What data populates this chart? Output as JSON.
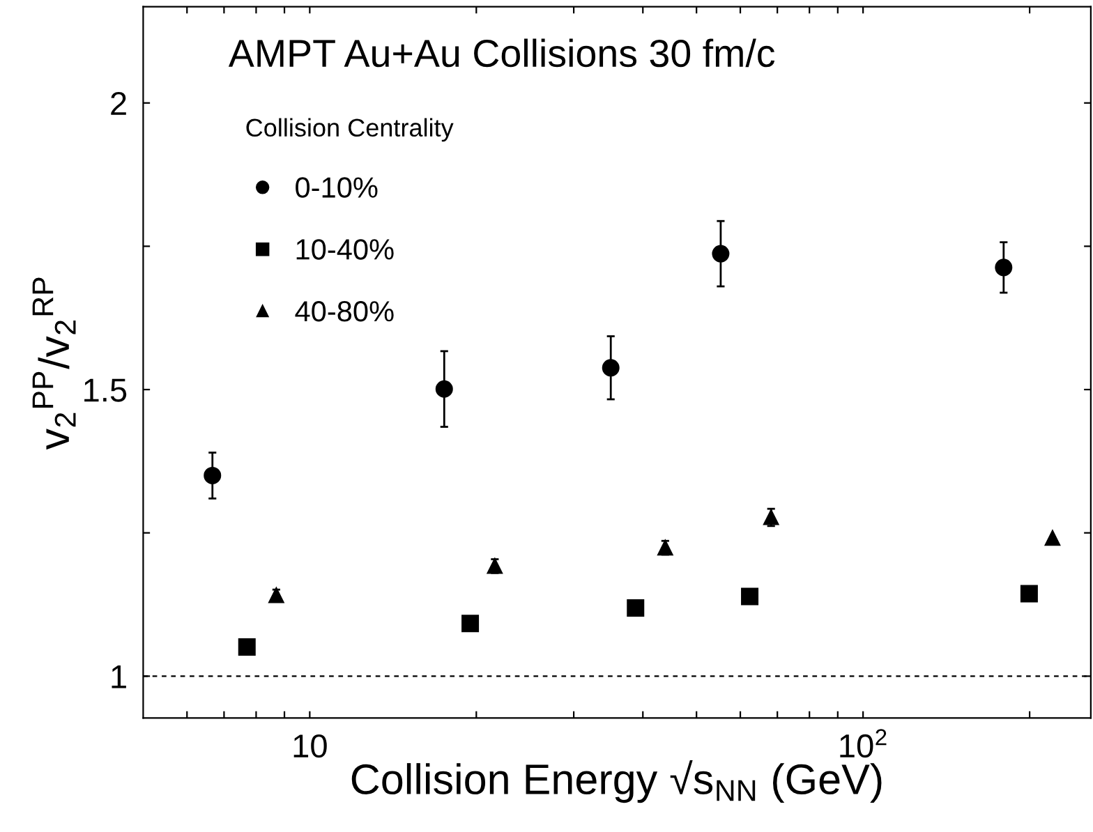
{
  "chart_data": {
    "type": "scatter",
    "title": "AMPT Au+Au Collisions 30 fm/c",
    "legend_title": "Collision Centrality",
    "xlabel": "Collision Energy √s$_{NN}$ (GeV)",
    "ylabel": "v$_{2}$$^{PP}$/v$_{2}$$^{RP}$",
    "log": "x",
    "xlim": [
      5,
      258
    ],
    "ylim": [
      0.927,
      2.168
    ],
    "xticks": [
      {
        "value": 6,
        "label": null
      },
      {
        "value": 7,
        "label": null
      },
      {
        "value": 8,
        "label": null
      },
      {
        "value": 9,
        "label": null
      },
      10,
      {
        "value": 20,
        "label": null
      },
      {
        "value": 30,
        "label": null
      },
      {
        "value": 40,
        "label": null
      },
      {
        "value": 50,
        "label": null
      },
      {
        "value": 60,
        "label": null
      },
      {
        "value": 70,
        "label": null
      },
      {
        "value": 80,
        "label": null
      },
      {
        "value": 90,
        "label": null
      },
      {
        "value": 100,
        "label": "10$^{2}$"
      },
      {
        "value": 200,
        "label": null
      }
    ],
    "yticks": [
      1,
      {
        "value": 1.25,
        "label": null
      },
      1.5,
      {
        "value": 1.75,
        "label": null
      },
      2
    ],
    "legend": "top left",
    "grid": false,
    "ref_lines": [
      {
        "axis": "y",
        "value": 1,
        "line_style": "dashed",
        "color": "#000000"
      }
    ],
    "series": [
      {
        "name": "0-10%",
        "color": "#000000",
        "marker": "circle",
        "x": [
          6.67,
          17.5,
          35.0,
          55.3,
          179.5
        ],
        "values": [
          1.35,
          1.501,
          1.538,
          1.737,
          1.713
        ],
        "errors": [
          0.04,
          0.066,
          0.055,
          0.057,
          0.044
        ]
      },
      {
        "name": "10-40%",
        "color": "#000000",
        "marker": "square",
        "x": [
          7.7,
          19.5,
          38.8,
          62.4,
          199.6
        ],
        "values": [
          1.051,
          1.092,
          1.119,
          1.139,
          1.144
        ]
      },
      {
        "name": "40-80%",
        "color": "#000000",
        "marker": "triangle",
        "x": [
          8.7,
          21.6,
          43.9,
          68.2,
          220
        ],
        "values": [
          1.141,
          1.192,
          1.224,
          1.277,
          1.241
        ],
        "errors": [
          0.01,
          0.012,
          0.012,
          0.015,
          null
        ]
      }
    ]
  }
}
